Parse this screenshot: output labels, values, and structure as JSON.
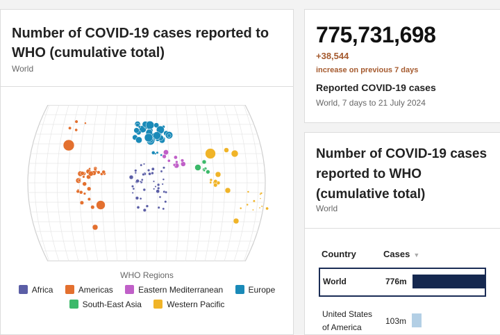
{
  "map_card": {
    "title": "Number of COVID-19 cases reported to WHO (cumulative total)",
    "subtitle": "World",
    "legend_title": "WHO Regions",
    "regions": [
      {
        "label": "Africa",
        "color": "#5b5ea6"
      },
      {
        "label": "Americas",
        "color": "#e3702f"
      },
      {
        "label": "Eastern Mediterranean",
        "color": "#c060c8"
      },
      {
        "label": "Europe",
        "color": "#1a8ab8"
      },
      {
        "label": "South-East Asia",
        "color": "#3cb96a"
      },
      {
        "label": "Western Pacific",
        "color": "#f0b428"
      }
    ]
  },
  "stats_card": {
    "total": "775,731,698",
    "delta": "+38,544",
    "delta_note": "increase on previous 7 days",
    "label": "Reported COVID-19 cases",
    "period": "World, 7 days to 21 July 2024"
  },
  "table_card": {
    "title": "Number of COVID-19 cases reported to WHO (cumulative total)",
    "subtitle": "World",
    "columns": {
      "country": "Country",
      "cases": "Cases"
    },
    "rows": [
      {
        "country": "World",
        "cases": "776m",
        "share": 1.0
      },
      {
        "country": "United States of America",
        "cases": "103m",
        "share": 0.133
      }
    ]
  }
}
